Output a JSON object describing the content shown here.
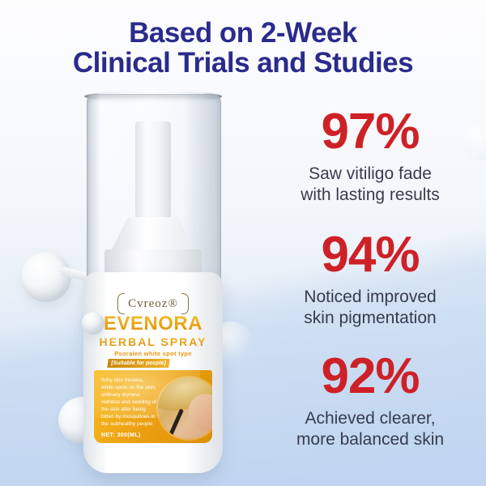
{
  "title": {
    "line1": "Based on 2-Week",
    "line2": "Clinical Trials and Studies"
  },
  "stats": [
    {
      "value": "97%",
      "label_line1": "Saw vitiligo fade",
      "label_line2": "with lasting results"
    },
    {
      "value": "94%",
      "label_line1": "Noticed improved",
      "label_line2": "skin pigmentation"
    },
    {
      "value": "92%",
      "label_line1": "Achieved clearer,",
      "label_line2": "more balanced skin"
    }
  ],
  "product": {
    "brand": "Cvreoz®",
    "name": "EVENORA",
    "type": "HERBAL SPRAY",
    "subtitle": "Psoralen white spot type",
    "band": "[Suitable for people]",
    "description": "Itchy skin freckles, white spots on the skin, ordinary dryness redness and swelling of the skin after being bitten by mosquitoes in the subhealthy people",
    "net": "NET: 300(ML)"
  },
  "icons": {
    "molecule": "molecule-sphere-decoration",
    "bubble": "bubble-decoration"
  },
  "colors": {
    "headline_navy": "#2a2b8c",
    "stat_red": "#ce2127",
    "stat_text": "#373b4e",
    "label_gold": "#eca011",
    "background_blue": "#c5d9f1"
  }
}
